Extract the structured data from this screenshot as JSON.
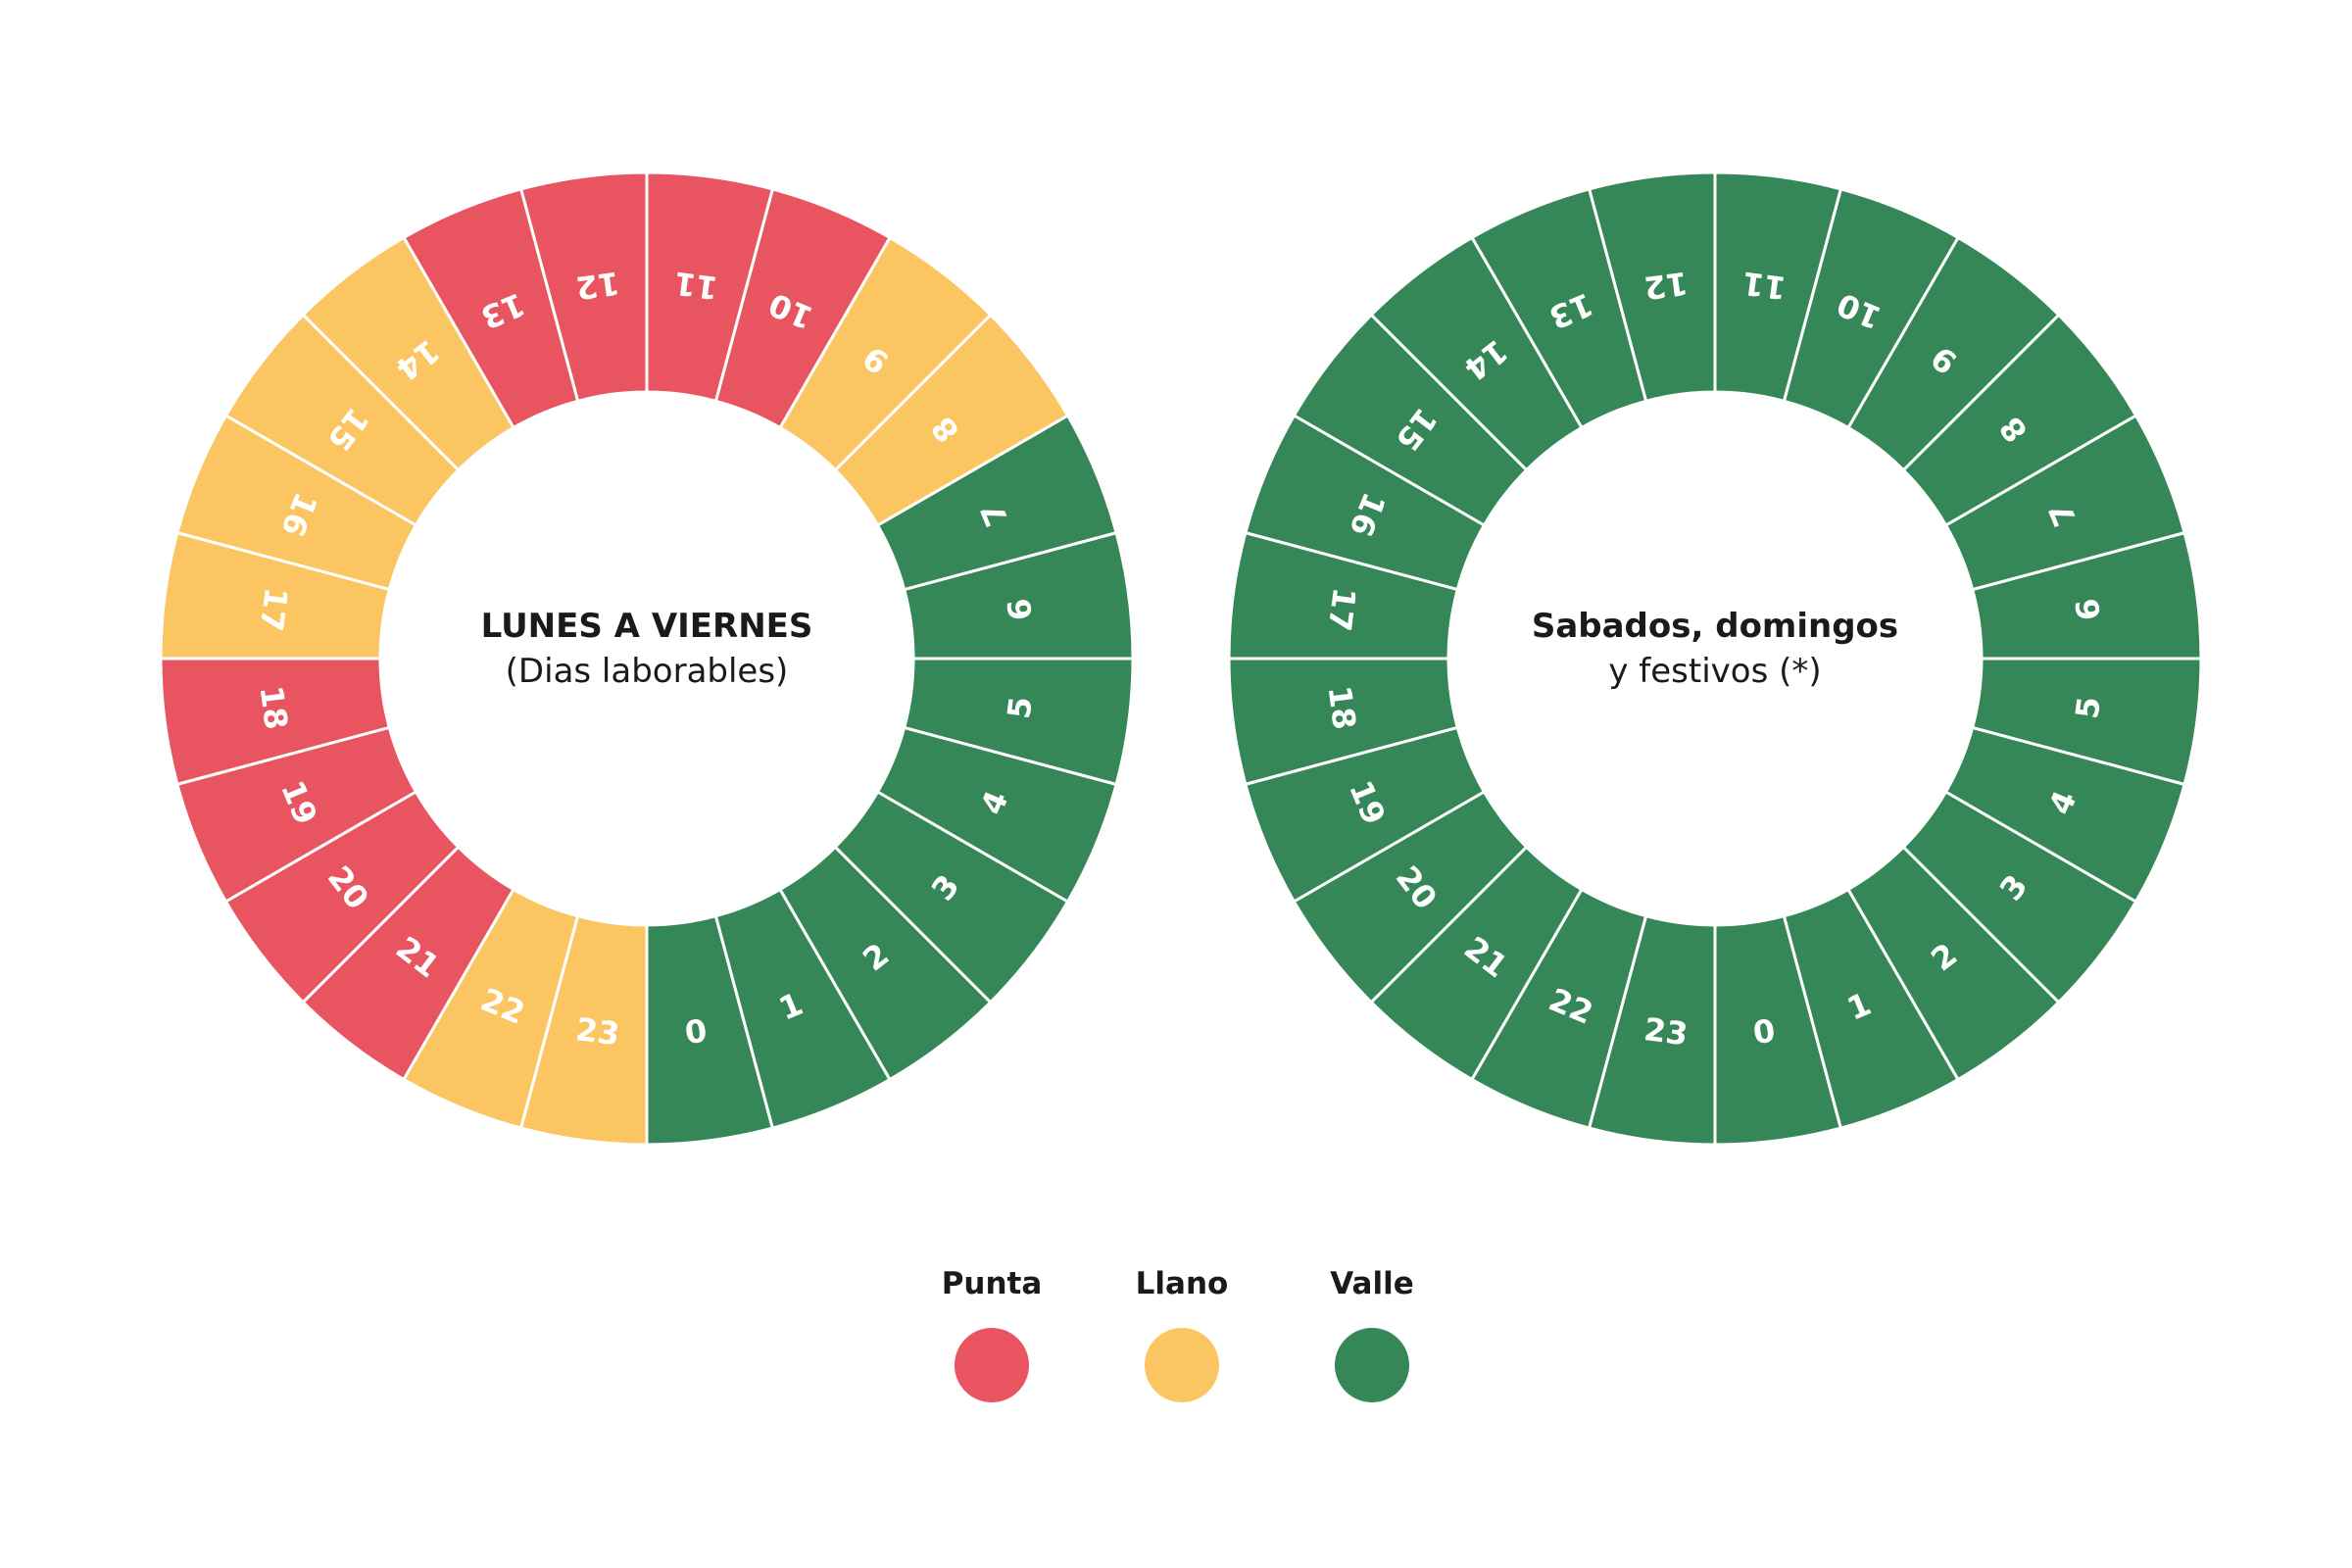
{
  "chart_data": [
    {
      "type": "pie",
      "subtype": "24-hour donut clock",
      "title": "LUNES A VIERNES",
      "subtitle": "(Dias laborables)",
      "hours": [
        0,
        1,
        2,
        3,
        4,
        5,
        6,
        7,
        8,
        9,
        10,
        11,
        12,
        13,
        14,
        15,
        16,
        17,
        18,
        19,
        20,
        21,
        22,
        23
      ],
      "periods": [
        "Valle",
        "Valle",
        "Valle",
        "Valle",
        "Valle",
        "Valle",
        "Valle",
        "Valle",
        "Llano",
        "Llano",
        "Punta",
        "Punta",
        "Punta",
        "Punta",
        "Llano",
        "Llano",
        "Llano",
        "Llano",
        "Punta",
        "Punta",
        "Punta",
        "Punta",
        "Llano",
        "Llano"
      ]
    },
    {
      "type": "pie",
      "subtype": "24-hour donut clock",
      "title": "Sabados, domingos",
      "subtitle": "y festivos (*)",
      "hours": [
        0,
        1,
        2,
        3,
        4,
        5,
        6,
        7,
        8,
        9,
        10,
        11,
        12,
        13,
        14,
        15,
        16,
        17,
        18,
        19,
        20,
        21,
        22,
        23
      ],
      "periods": [
        "Valle",
        "Valle",
        "Valle",
        "Valle",
        "Valle",
        "Valle",
        "Valle",
        "Valle",
        "Valle",
        "Valle",
        "Valle",
        "Valle",
        "Valle",
        "Valle",
        "Valle",
        "Valle",
        "Valle",
        "Valle",
        "Valle",
        "Valle",
        "Valle",
        "Valle",
        "Valle",
        "Valle"
      ]
    }
  ],
  "legend": [
    {
      "label": "Punta",
      "color": "#e85460"
    },
    {
      "label": "Llano",
      "color": "#fbc662"
    },
    {
      "label": "Valle",
      "color": "#368757"
    }
  ]
}
